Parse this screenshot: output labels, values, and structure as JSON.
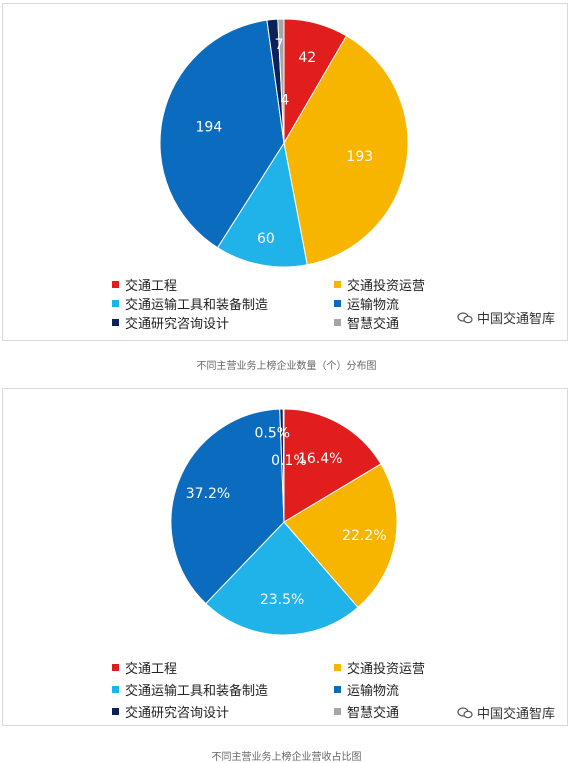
{
  "colors": {
    "交通工程": "#e11d1d",
    "交通投资运营": "#f7b500",
    "交通运输工具和装备制造": "#1fb3ea",
    "运输物流": "#0b6cbf",
    "交通研究咨询设计": "#0d2159",
    "智慧交通": "#a6a6a6"
  },
  "watermark": {
    "text": "中国交通智库",
    "icon": "wechat-icon"
  },
  "chart_data": [
    {
      "type": "pie",
      "title": "",
      "caption": "不同主营业务上榜企业数量（个）分布图",
      "categories": [
        "交通工程",
        "交通投资运营",
        "交通运输工具和装备制造",
        "运输物流",
        "交通研究咨询设计",
        "智慧交通"
      ],
      "values": [
        42,
        193,
        60,
        194,
        7,
        4
      ],
      "data_labels": [
        "42",
        "193",
        "60",
        "194",
        "7",
        "4"
      ],
      "legend": [
        "交通工程",
        "交通投资运营",
        "交通运输工具和装备制造",
        "运输物流",
        "交通研究咨询设计",
        "智慧交通"
      ],
      "legend_position": "bottom"
    },
    {
      "type": "pie",
      "title": "",
      "caption": "不同主营业务上榜企业营收占比图",
      "categories": [
        "交通工程",
        "交通投资运营",
        "交通运输工具和装备制造",
        "运输物流",
        "交通研究咨询设计",
        "智慧交通"
      ],
      "values": [
        16.4,
        22.2,
        23.5,
        37.2,
        0.5,
        0.1
      ],
      "data_labels": [
        "16.4%",
        "22.2%",
        "23.5%",
        "37.2%",
        "0.5%",
        "0.1%"
      ],
      "legend": [
        "交通工程",
        "交通投资运营",
        "交通运输工具和装备制造",
        "运输物流",
        "交通研究咨询设计",
        "智慧交通"
      ],
      "legend_position": "bottom"
    }
  ]
}
